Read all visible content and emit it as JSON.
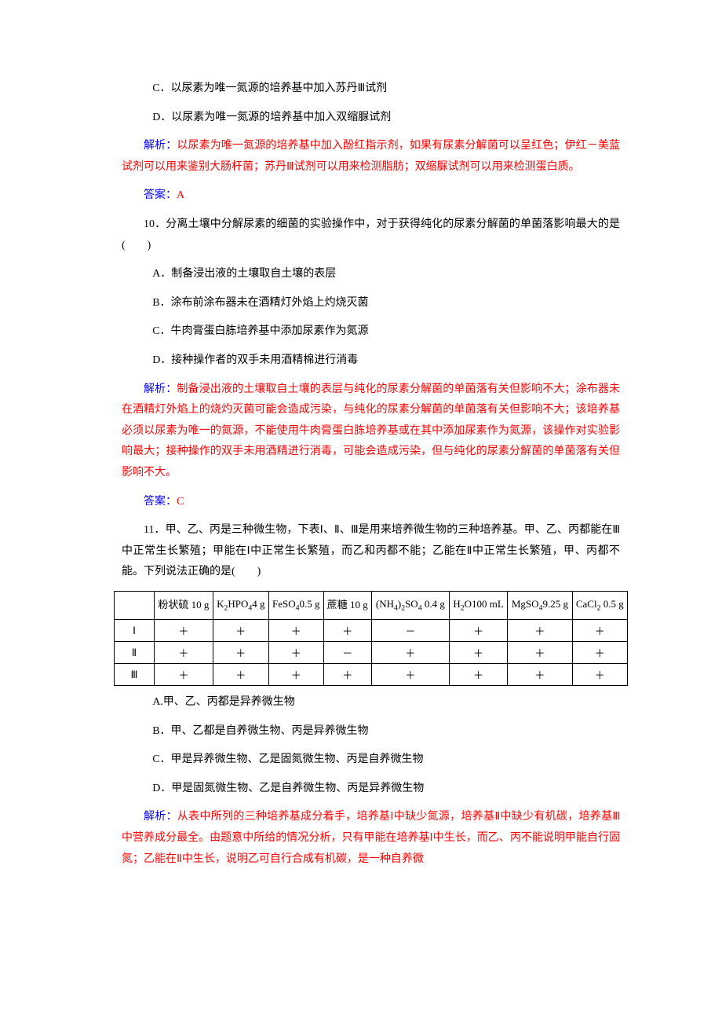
{
  "options_top": {
    "c": "C．以尿素为唯一氮源的培养基中加入苏丹Ⅲ试剂",
    "d": "D．以尿素为唯一氮源的培养基中加入双缩脲试剂"
  },
  "analysis_9": {
    "label": "解析：",
    "text": "以尿素为唯一氮源的培养基中加入酚红指示剂，如果有尿素分解菌可以呈红色；伊红－美蓝试剂可以用来鉴别大肠杆菌；苏丹Ⅲ试剂可以用来检测脂肪；双缩脲试剂可以用来检测蛋白质。"
  },
  "answer_9": {
    "label": "答案：",
    "value": "A"
  },
  "q10": {
    "stem": "10．分离土壤中分解尿素的细菌的实验操作中，对于获得纯化的尿素分解菌的单菌落影响最大的是(　　)",
    "a": "A．制备浸出液的土壤取自土壤的表层",
    "b": "B．涂布前涂布器未在酒精灯外焰上灼烧灭菌",
    "c": "C．牛肉膏蛋白胨培养基中添加尿素作为氮源",
    "d": "D．接种操作者的双手未用酒精棉进行消毒"
  },
  "analysis_10": {
    "label": "解析：",
    "text": "制备浸出液的土壤取自土壤的表层与纯化的尿素分解菌的单菌落有关但影响不大；涂布器未在酒精灯外焰上的烧灼灭菌可能会造成污染，与纯化的尿素分解菌的单菌落有关但影响不大；该培养基必须以尿素为唯一的氮源，不能使用牛肉膏蛋白胨培养基或在其中添加尿素作为氮源，该操作对实验影响最大；接种操作的双手未用酒精进行消毒，可能会造成污染，但与纯化的尿素分解菌的单菌落有关但影响不大。"
  },
  "answer_10": {
    "label": "答案：",
    "value": "C"
  },
  "q11": {
    "stem": "11．甲、乙、丙是三种微生物，下表Ⅰ、Ⅱ、Ⅲ是用来培养微生物的三种培养基。甲、乙、丙都能在Ⅲ中正常生长繁殖；甲能在Ⅰ中正常生长繁殖，而乙和丙都不能；乙能在Ⅱ中正常生长繁殖，甲、丙都不能。下列说法正确的是(　　)",
    "a": "A.甲、乙、丙都是异养微生物",
    "b": "B．甲、乙都是自养微生物、丙是异养微生物",
    "c": "C．甲是异养微生物、乙是固氮微生物、丙是自养微生物",
    "d": "D．甲是固氮微生物、乙是自养微生物、丙是异养微生物"
  },
  "table": {
    "headers": {
      "c1": "粉状硫 10 g",
      "c2_a": "K",
      "c2_b": "HPO",
      "c2_c": "4 g",
      "c3_a": "FeSO",
      "c3_b": "0.5 g",
      "c4": "蔗糖 10 g",
      "c5_a": "(NH",
      "c5_b": ")",
      "c5_c": "SO",
      "c5_d": " 0.4 g",
      "c6_a": "H",
      "c6_b": "O100 mL",
      "c7_a": "MgSO",
      "c7_b": "9.25 g",
      "c8_a": "CaCl",
      "c8_b": " 0.5 g"
    },
    "rows": [
      {
        "label": "Ⅰ",
        "cells": [
          "＋",
          "＋",
          "＋",
          "＋",
          "－",
          "＋",
          "＋",
          "＋"
        ]
      },
      {
        "label": "Ⅱ",
        "cells": [
          "＋",
          "＋",
          "＋",
          "－",
          "＋",
          "＋",
          "＋",
          "＋"
        ]
      },
      {
        "label": "Ⅲ",
        "cells": [
          "＋",
          "＋",
          "＋",
          "＋",
          "＋",
          "＋",
          "＋",
          "＋"
        ]
      }
    ]
  },
  "analysis_11": {
    "label": "解析：",
    "text": "从表中所列的三种培养基成分着手，培养基Ⅰ中缺少氮源，培养基Ⅱ中缺少有机碳，培养基Ⅲ中营养成分最全。由题意中所给的情况分析，只有甲能在培养基Ⅰ中生长，而乙、丙不能说明甲能自行固氮；乙能在Ⅱ中生长，说明乙可自行合成有机碳，是一种自养微"
  }
}
